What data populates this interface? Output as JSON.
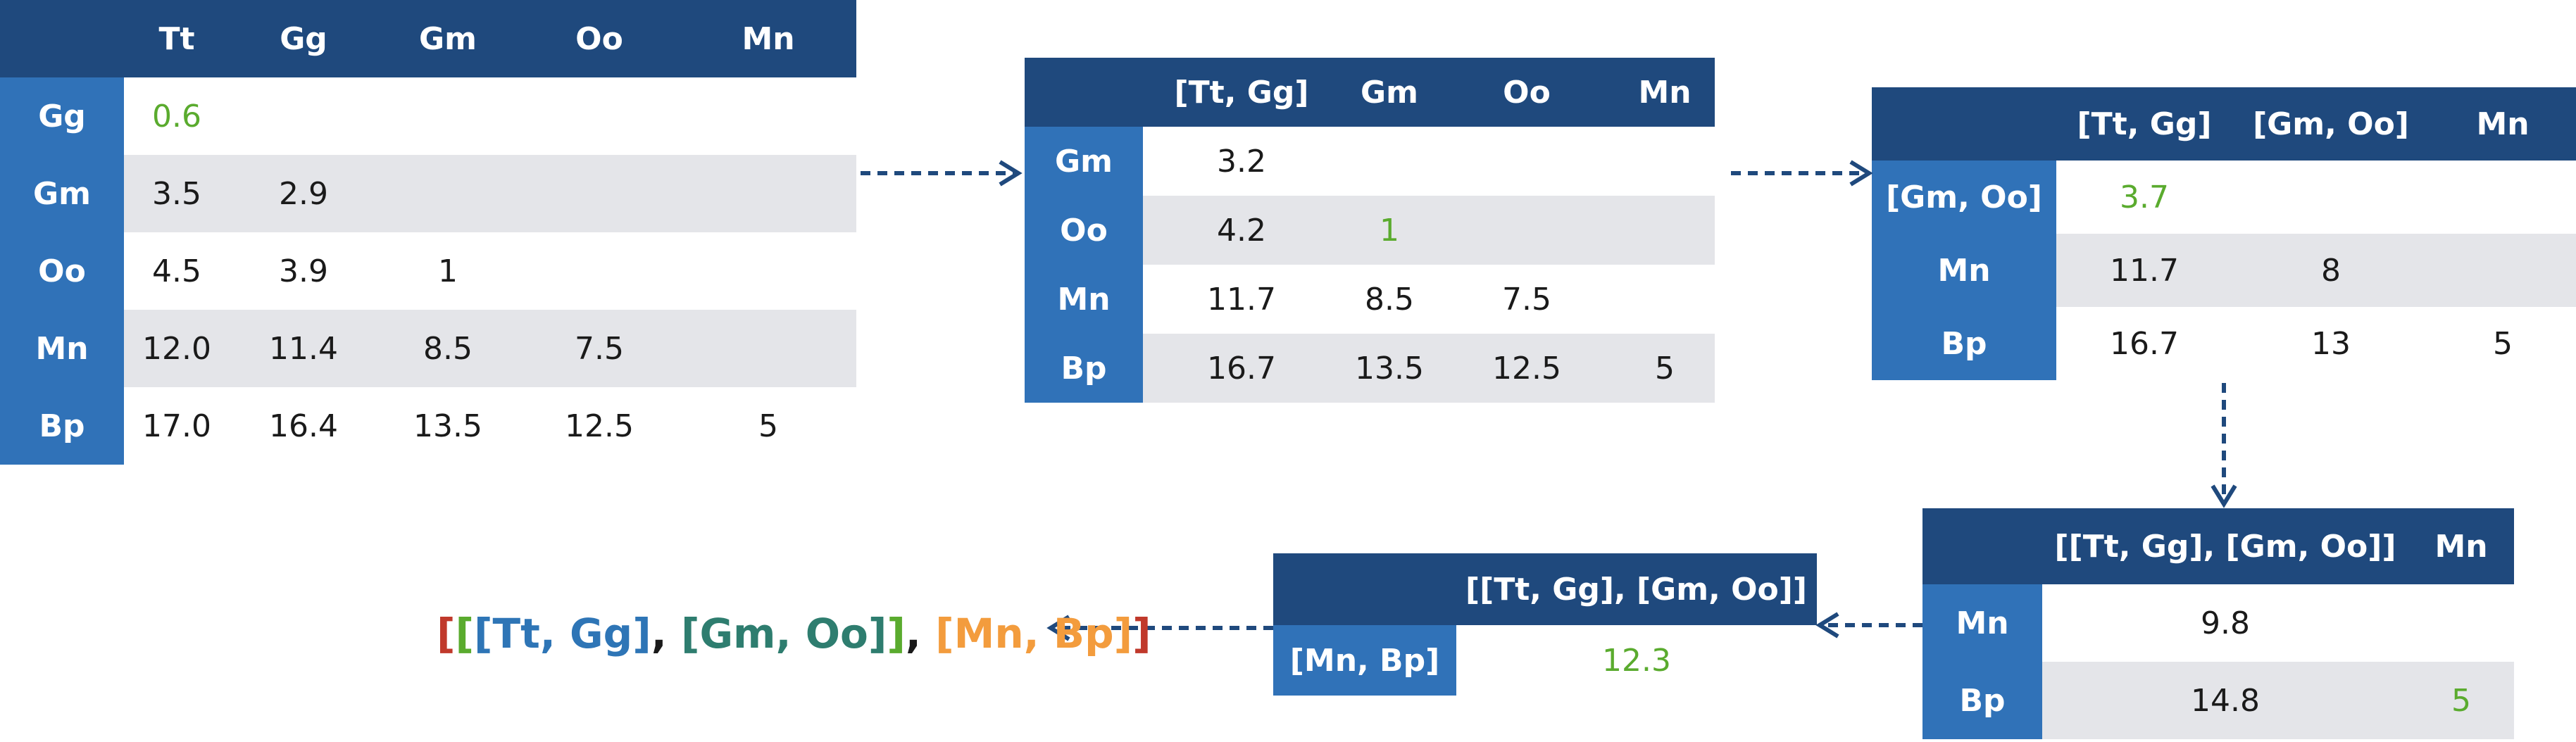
{
  "table1": {
    "cols": [
      "Tt",
      "Gg",
      "Gm",
      "Oo",
      "Mn"
    ],
    "rows": [
      {
        "label": "Gg",
        "cells": [
          "0.6",
          "",
          "",
          "",
          ""
        ]
      },
      {
        "label": "Gm",
        "cells": [
          "3.5",
          "2.9",
          "",
          "",
          ""
        ]
      },
      {
        "label": "Oo",
        "cells": [
          "4.5",
          "3.9",
          "1",
          "",
          ""
        ]
      },
      {
        "label": "Mn",
        "cells": [
          "12.0",
          "11.4",
          "8.5",
          "7.5",
          ""
        ]
      },
      {
        "label": "Bp",
        "cells": [
          "17.0",
          "16.4",
          "13.5",
          "12.5",
          "5"
        ]
      }
    ]
  },
  "table2": {
    "cols": [
      "[Tt, Gg]",
      "Gm",
      "Oo",
      "Mn"
    ],
    "rows": [
      {
        "label": "Gm",
        "cells": [
          "3.2",
          "",
          "",
          ""
        ]
      },
      {
        "label": "Oo",
        "cells": [
          "4.2",
          "1",
          "",
          ""
        ]
      },
      {
        "label": "Mn",
        "cells": [
          "11.7",
          "8.5",
          "7.5",
          ""
        ]
      },
      {
        "label": "Bp",
        "cells": [
          "16.7",
          "13.5",
          "12.5",
          "5"
        ]
      }
    ]
  },
  "table3": {
    "cols": [
      "[Tt, Gg]",
      "[Gm, Oo]",
      "Mn"
    ],
    "rows": [
      {
        "label": "[Gm, Oo]",
        "cells": [
          "3.7",
          "",
          ""
        ]
      },
      {
        "label": "Mn",
        "cells": [
          "11.7",
          "8",
          ""
        ]
      },
      {
        "label": "Bp",
        "cells": [
          "16.7",
          "13",
          "5"
        ]
      }
    ]
  },
  "table4": {
    "cols": [
      "[[Tt, Gg], [Gm, Oo]]",
      "Mn"
    ],
    "rows": [
      {
        "label": "Mn",
        "cells": [
          "9.8",
          ""
        ]
      },
      {
        "label": "Bp",
        "cells": [
          "14.8",
          "5"
        ]
      }
    ]
  },
  "table5": {
    "cols": [
      "[[Tt, Gg], [Gm, Oo]]"
    ],
    "rows": [
      {
        "label": "[Mn, Bp]",
        "cells": [
          "12.3"
        ]
      }
    ]
  },
  "result": {
    "open_outer": "[",
    "open_mid": "[",
    "open_inner": "[",
    "first_pair": "Tt, Gg",
    "close_inner": "]",
    "sep1": ", ",
    "second_pair": "[Gm, Oo]",
    "close_mid": "]",
    "sep2": ", ",
    "third_pair": "[Mn, Bp]",
    "close_outer": "]"
  },
  "colors": {
    "header": "#1f497d",
    "row_label": "#3072b8",
    "shade": "#e4e5e9",
    "highlight": "#5aab2e",
    "arrow": "#1f497d"
  }
}
